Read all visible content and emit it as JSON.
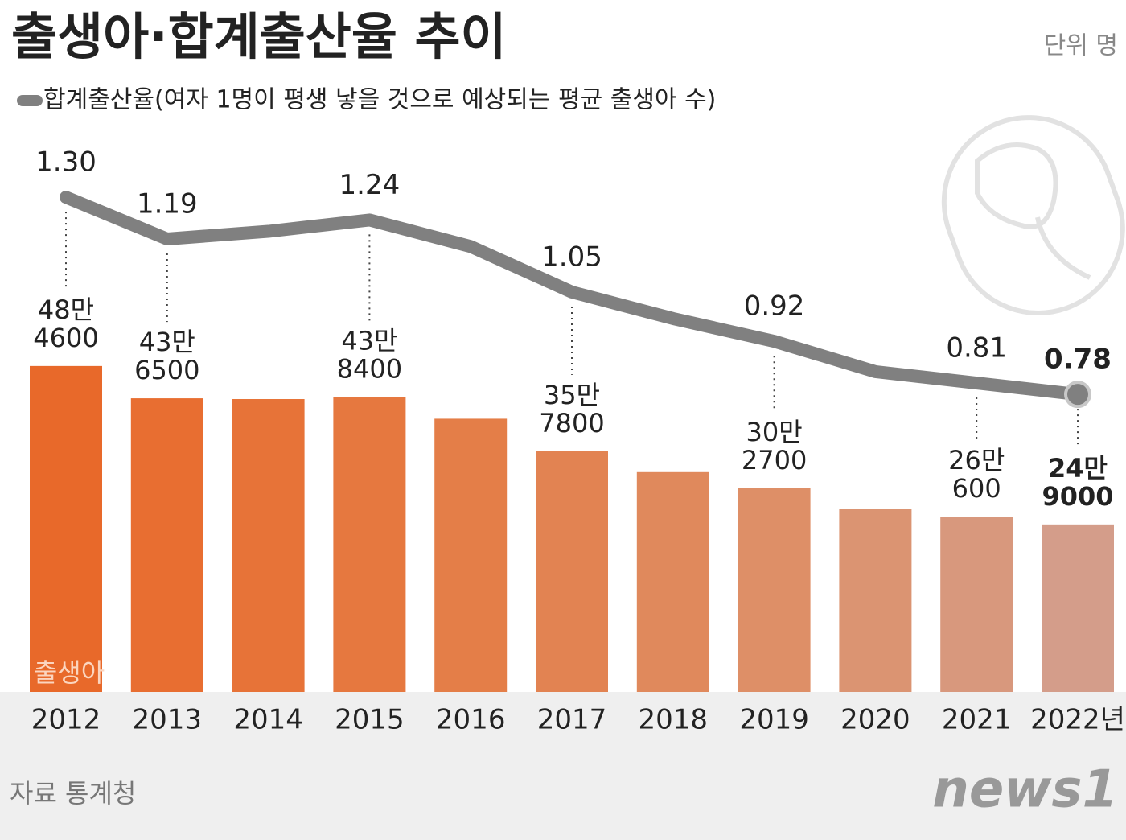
{
  "chart_data": {
    "type": "bar-line",
    "title": "출생아·합계출산율 추이",
    "unit": "단위 명",
    "source": "자료 통계청",
    "logo": "news1",
    "categories": [
      "2012",
      "2013",
      "2014",
      "2015",
      "2016",
      "2017",
      "2018",
      "2019",
      "2020",
      "2021",
      "2022년"
    ],
    "series": [
      {
        "name": "출생아",
        "type": "bar",
        "colors": [
          "#e8692a",
          "#e86e31",
          "#e77338",
          "#e6783f",
          "#e47e48",
          "#e28352",
          "#e0895c",
          "#de8f67",
          "#db9472",
          "#d8987d",
          "#d49d8a"
        ],
        "values": [
          484600,
          436500,
          435400,
          438400,
          406200,
          357800,
          326800,
          302700,
          272300,
          260600,
          249000
        ],
        "value_labels": [
          [
            "48만",
            "4600"
          ],
          [
            "43만",
            "6500"
          ],
          null,
          [
            "43만",
            "8400"
          ],
          null,
          [
            "35만",
            "7800"
          ],
          null,
          [
            "30만",
            "2700"
          ],
          null,
          [
            "26만",
            "600"
          ],
          [
            "24만",
            "9000"
          ]
        ]
      },
      {
        "name": "합계출산율(여자 1명이 평생 낳을 것으로 예상되는 평균 출생아 수)",
        "type": "line",
        "axis": "y2",
        "color": "#808080",
        "values": [
          1.3,
          1.19,
          1.21,
          1.24,
          1.17,
          1.05,
          0.98,
          0.92,
          0.84,
          0.81,
          0.78
        ],
        "value_labels": [
          "1.30",
          "1.19",
          null,
          "1.24",
          null,
          "1.05",
          null,
          "0.92",
          null,
          "0.81",
          "0.78"
        ]
      }
    ],
    "ylim": [
      0,
      500000
    ],
    "y2lim": [
      0.6,
      1.4
    ]
  }
}
